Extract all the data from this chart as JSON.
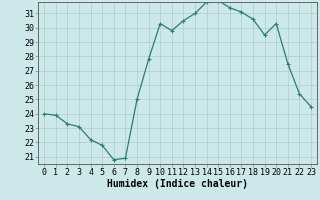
{
  "x": [
    0,
    1,
    2,
    3,
    4,
    5,
    6,
    7,
    8,
    9,
    10,
    11,
    12,
    13,
    14,
    15,
    16,
    17,
    18,
    19,
    20,
    21,
    22,
    23
  ],
  "y": [
    24.0,
    23.9,
    23.3,
    23.1,
    22.2,
    21.8,
    20.8,
    20.9,
    25.0,
    27.8,
    30.3,
    29.8,
    30.5,
    31.0,
    31.8,
    31.9,
    31.4,
    31.1,
    30.6,
    29.5,
    30.3,
    27.5,
    25.4,
    24.5
  ],
  "line_color": "#2e7d6e",
  "marker": "+",
  "marker_color": "#2e7d6e",
  "bg_color": "#cce8e8",
  "grid_color": "#aacece",
  "xlabel": "Humidex (Indice chaleur)",
  "ylabel_ticks": [
    21,
    22,
    23,
    24,
    25,
    26,
    27,
    28,
    29,
    30,
    31
  ],
  "xlim": [
    -0.5,
    23.5
  ],
  "ylim": [
    20.5,
    31.8
  ],
  "xlabel_fontsize": 7,
  "tick_fontsize": 6,
  "xticks": [
    0,
    1,
    2,
    3,
    4,
    5,
    6,
    7,
    8,
    9,
    10,
    11,
    12,
    13,
    14,
    15,
    16,
    17,
    18,
    19,
    20,
    21,
    22,
    23
  ]
}
